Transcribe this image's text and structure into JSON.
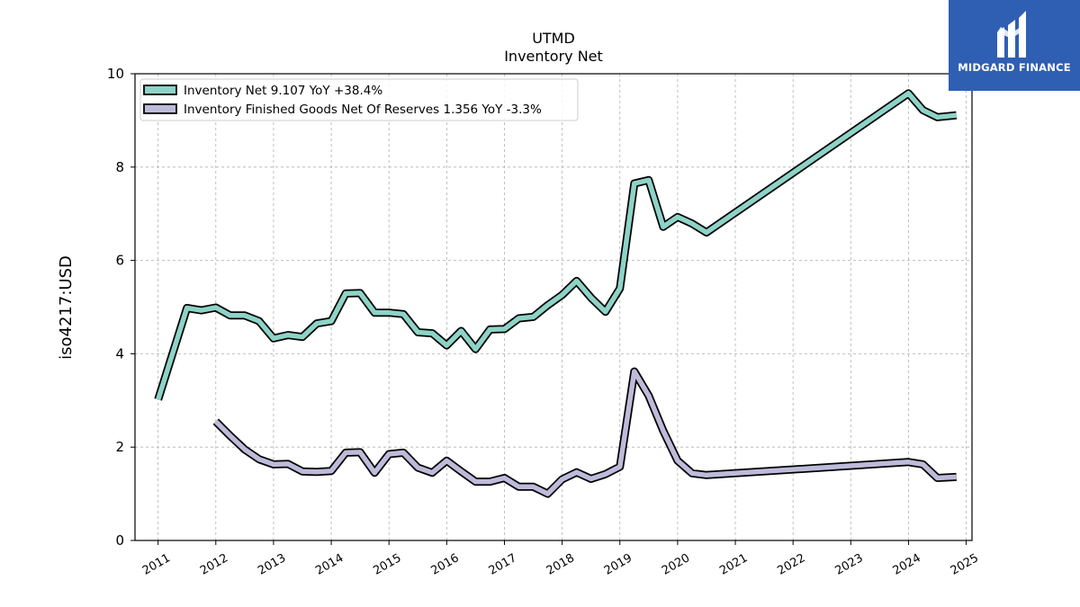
{
  "header": {
    "ticker": "UTMD",
    "subtitle": "Inventory Net"
  },
  "brand": {
    "name": "MIDGARD FINANCE",
    "logo_icon": "midgard-m-logo-icon",
    "color": "#2f5fb3"
  },
  "chart_data": {
    "type": "line",
    "title": "UTMD",
    "subtitle": "Inventory Net",
    "ylabel": "iso4217:USD",
    "xlabel": "",
    "xlim": [
      2010.6,
      2025.1
    ],
    "ylim": [
      0,
      10
    ],
    "xticks": [
      "2011",
      "2012",
      "2013",
      "2014",
      "2015",
      "2016",
      "2017",
      "2018",
      "2019",
      "2020",
      "2021",
      "2022",
      "2023",
      "2024",
      "2025"
    ],
    "yticks": [
      "0",
      "2",
      "4",
      "6",
      "8",
      "10"
    ],
    "grid": true,
    "legend_position": "top-left",
    "series": [
      {
        "name": "Inventory Net",
        "legend_label": "Inventory Net  9.107 YoY +38.4%",
        "color": "#8dd3c7",
        "x": [
          2011.0,
          2011.5,
          2011.75,
          2012.0,
          2012.25,
          2012.5,
          2012.75,
          2013.0,
          2013.25,
          2013.5,
          2013.75,
          2014.0,
          2014.25,
          2014.5,
          2014.75,
          2015.0,
          2015.25,
          2015.5,
          2015.75,
          2016.0,
          2016.25,
          2016.5,
          2016.75,
          2017.0,
          2017.25,
          2017.5,
          2017.75,
          2018.0,
          2018.25,
          2018.5,
          2018.75,
          2019.0,
          2019.25,
          2019.5,
          2019.75,
          2020.0,
          2020.25,
          2020.5,
          2024.0,
          2024.25,
          2024.5,
          2024.83
        ],
        "y": [
          3.02,
          4.98,
          4.93,
          4.99,
          4.82,
          4.82,
          4.7,
          4.33,
          4.4,
          4.36,
          4.65,
          4.7,
          5.29,
          5.3,
          4.88,
          4.88,
          4.85,
          4.46,
          4.44,
          4.18,
          4.49,
          4.1,
          4.52,
          4.53,
          4.76,
          4.79,
          5.04,
          5.26,
          5.56,
          5.2,
          4.9,
          5.4,
          7.65,
          7.72,
          6.72,
          6.93,
          6.79,
          6.6,
          9.58,
          9.22,
          9.07,
          9.11
        ]
      },
      {
        "name": "Inventory Finished Goods Net Of Reserves",
        "legend_label": "Inventory Finished Goods Net Of Reserves  1.356 YoY -3.3%",
        "color": "#bebada",
        "x": [
          2012.0,
          2012.25,
          2012.5,
          2012.75,
          2013.0,
          2013.25,
          2013.5,
          2013.75,
          2014.0,
          2014.25,
          2014.5,
          2014.75,
          2015.0,
          2015.25,
          2015.5,
          2015.75,
          2016.0,
          2016.25,
          2016.5,
          2016.75,
          2017.0,
          2017.25,
          2017.5,
          2017.75,
          2018.0,
          2018.25,
          2018.5,
          2018.75,
          2019.0,
          2019.25,
          2019.5,
          2019.75,
          2020.0,
          2020.25,
          2020.5,
          2024.0,
          2024.25,
          2024.5,
          2024.83
        ],
        "y": [
          2.55,
          2.24,
          1.95,
          1.74,
          1.63,
          1.64,
          1.48,
          1.47,
          1.49,
          1.88,
          1.89,
          1.45,
          1.85,
          1.88,
          1.56,
          1.45,
          1.71,
          1.48,
          1.26,
          1.26,
          1.34,
          1.15,
          1.15,
          1.0,
          1.31,
          1.46,
          1.32,
          1.42,
          1.58,
          3.62,
          3.1,
          2.35,
          1.71,
          1.44,
          1.4,
          1.68,
          1.63,
          1.34,
          1.36
        ]
      }
    ]
  }
}
